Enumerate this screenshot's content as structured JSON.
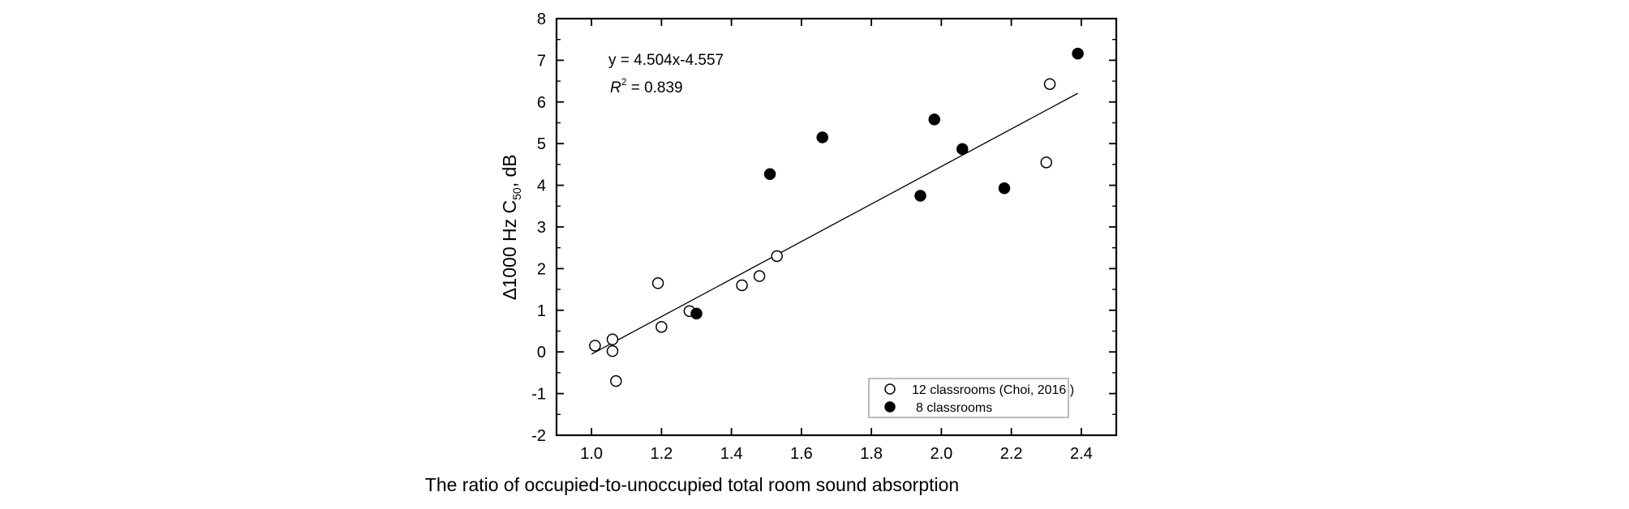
{
  "chart_data": {
    "type": "scatter",
    "xlabel": "The ratio of occupied-to-unoccupied total room sound absorption",
    "ylabel_main": "∆1000 Hz C",
    "ylabel_sub": "50",
    "ylabel_tail": ", dB",
    "xlim": [
      0.9,
      2.5
    ],
    "ylim": [
      -2,
      8
    ],
    "x_ticks": [
      "1.0",
      "1.2",
      "1.4",
      "1.6",
      "1.8",
      "2.0",
      "2.2",
      "2.4"
    ],
    "y_ticks": [
      "-2",
      "-1",
      "0",
      "1",
      "2",
      "3",
      "4",
      "5",
      "6",
      "7",
      "8"
    ],
    "grid": false,
    "legend_position": "bottom-right",
    "annotations": {
      "equation": "y = 4.504x-4.557",
      "r2_symbol": "R",
      "r2_exponent": "2",
      "r2_value": " = 0.839"
    },
    "fit_line": {
      "slope": 4.504,
      "intercept": -4.557,
      "x_range": [
        1.0,
        2.39
      ]
    },
    "series": [
      {
        "name": "12 classrooms (Choi, 2016 )",
        "marker": "open-circle",
        "points": [
          {
            "x": 1.01,
            "y": 0.15
          },
          {
            "x": 1.06,
            "y": 0.3
          },
          {
            "x": 1.06,
            "y": 0.02
          },
          {
            "x": 1.07,
            "y": -0.7
          },
          {
            "x": 1.19,
            "y": 1.65
          },
          {
            "x": 1.2,
            "y": 0.6
          },
          {
            "x": 1.28,
            "y": 0.98
          },
          {
            "x": 1.43,
            "y": 1.6
          },
          {
            "x": 1.48,
            "y": 1.82
          },
          {
            "x": 1.53,
            "y": 2.3
          },
          {
            "x": 2.3,
            "y": 4.55
          },
          {
            "x": 2.31,
            "y": 6.43
          }
        ]
      },
      {
        "name": "8 classrooms",
        "marker": "filled-circle",
        "points": [
          {
            "x": 1.3,
            "y": 0.92
          },
          {
            "x": 1.51,
            "y": 4.27
          },
          {
            "x": 1.66,
            "y": 5.15
          },
          {
            "x": 1.94,
            "y": 3.75
          },
          {
            "x": 1.98,
            "y": 5.58
          },
          {
            "x": 2.06,
            "y": 4.87
          },
          {
            "x": 2.18,
            "y": 3.93
          },
          {
            "x": 2.39,
            "y": 7.16
          }
        ]
      }
    ]
  }
}
